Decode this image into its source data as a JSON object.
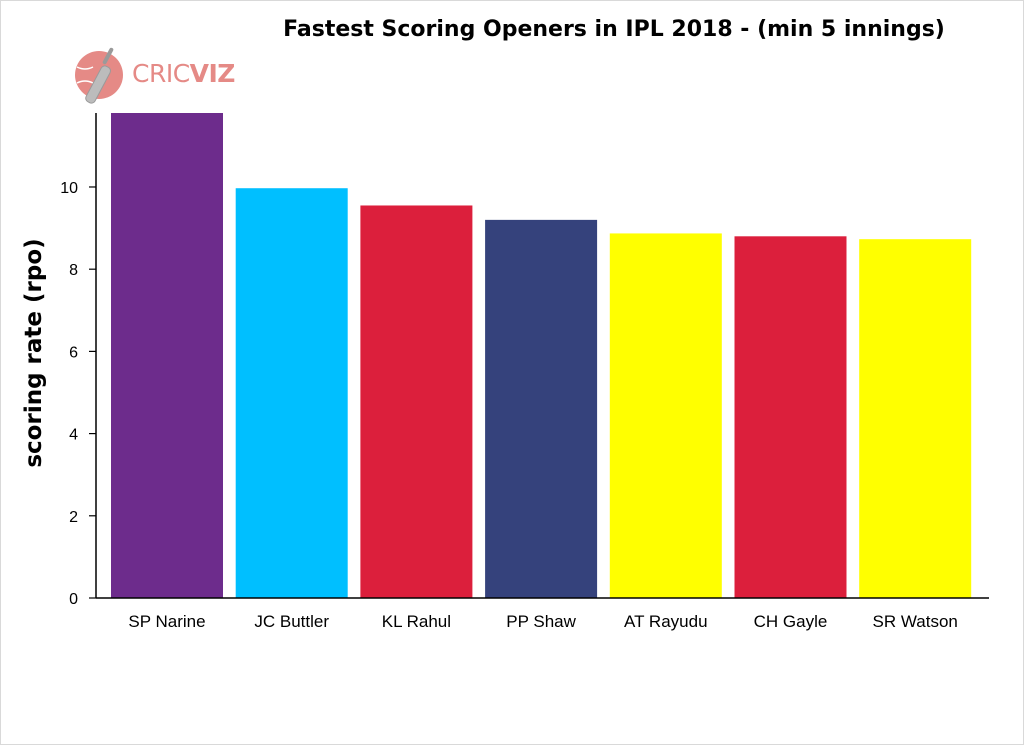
{
  "logo": {
    "brand_light": "CRIC",
    "brand_bold": "VIZ",
    "color": "#e58a86",
    "icon": "cricket-bat-ball-icon"
  },
  "chart_data": {
    "type": "bar",
    "title": "Fastest Scoring Openers in IPL 2018 - (min 5 innings)",
    "xlabel": "",
    "ylabel": "scoring rate (rpo)",
    "categories": [
      "SP Narine",
      "JC Buttler",
      "KL Rahul",
      "PP Shaw",
      "AT Rayudu",
      "CH Gayle",
      "SR Watson"
    ],
    "values": [
      11.8,
      9.97,
      9.55,
      9.2,
      8.87,
      8.8,
      8.73
    ],
    "colors": [
      "#6d2c8c",
      "#00bfff",
      "#dc1f3c",
      "#35427c",
      "#ffff00",
      "#dc1f3c",
      "#ffff00"
    ],
    "ylim": [
      0,
      11.8
    ],
    "yticks": [
      0,
      2,
      4,
      6,
      8,
      10
    ],
    "grid": false,
    "legend": "none"
  }
}
